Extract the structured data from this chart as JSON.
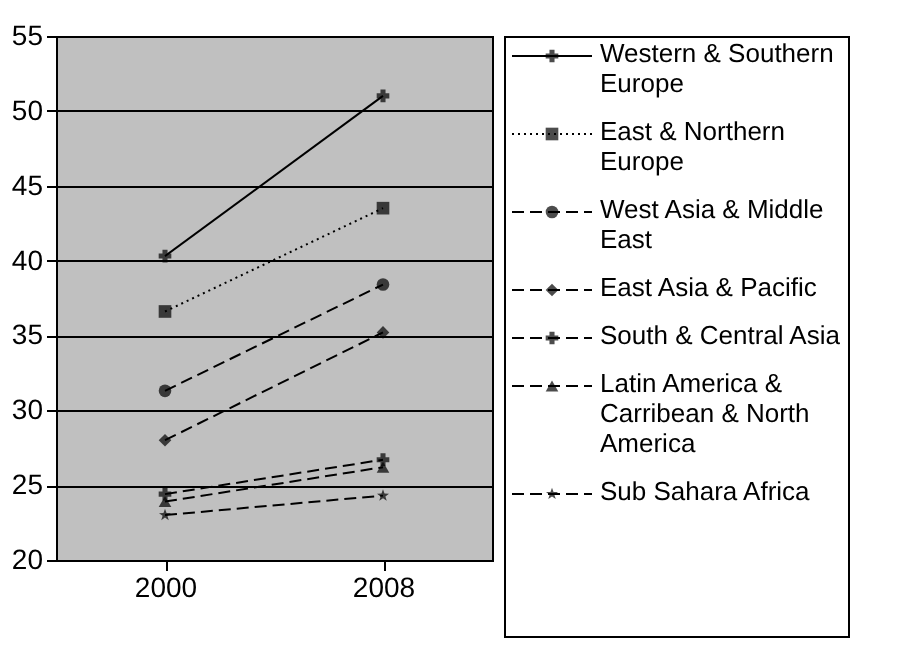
{
  "chart_data": {
    "type": "line",
    "categories": [
      "2000",
      "2008"
    ],
    "series": [
      {
        "name": "Western & Southern Europe",
        "color": "#000000",
        "values": [
          40.3,
          51.0
        ],
        "marker": "cross",
        "line_style": "solid"
      },
      {
        "name": "East & Northern Europe",
        "color": "#000000",
        "values": [
          36.6,
          43.5
        ],
        "marker": "square",
        "line_style": "dotted"
      },
      {
        "name": "West Asia & Middle East",
        "color": "#000000",
        "values": [
          31.3,
          38.4
        ],
        "marker": "circle",
        "line_style": "dashed"
      },
      {
        "name": "East Asia & Pacific",
        "color": "#000000",
        "values": [
          28.0,
          35.2
        ],
        "marker": "diamond",
        "line_style": "dashed"
      },
      {
        "name": "South & Central Asia",
        "color": "#000000",
        "values": [
          24.4,
          26.7
        ],
        "marker": "cross",
        "line_style": "dashed"
      },
      {
        "name": "Latin America & Carribean & North America",
        "color": "#000000",
        "values": [
          23.9,
          26.2
        ],
        "marker": "triangle",
        "line_style": "dashed"
      },
      {
        "name": "Sub Sahara Africa",
        "color": "#000000",
        "values": [
          23.0,
          24.3
        ],
        "marker": "star",
        "line_style": "dashed"
      }
    ],
    "ylim": [
      20,
      55
    ],
    "yticks": [
      20,
      25,
      30,
      35,
      40,
      45,
      50,
      55
    ],
    "grid": "y",
    "legend": "right"
  }
}
